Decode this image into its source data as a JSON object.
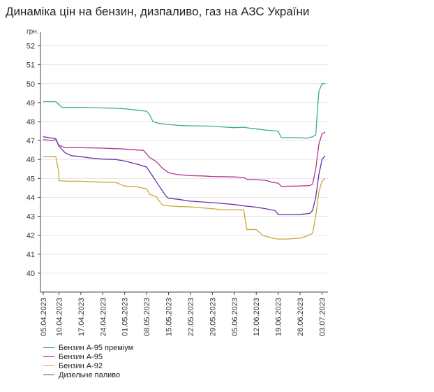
{
  "title": "Динаміка цін на бензин, дизпаливо, газ на АЗС України",
  "chart_data": {
    "type": "line",
    "title": "Динаміка цін на бензин, дизпаливо, газ на АЗС України",
    "ylabel": "грн.",
    "xlabel": "",
    "ylim": [
      39,
      52.5
    ],
    "y_ticks": [
      40,
      41,
      42,
      43,
      44,
      45,
      46,
      47,
      48,
      49,
      50,
      51,
      52
    ],
    "x_tick_labels": [
      "05.04.2023",
      "10.04.2023",
      "17.04.2023",
      "24.04.2023",
      "01.05.2023",
      "08.05.2023",
      "15.05.2023",
      "22.05.2023",
      "29.05.2023",
      "05.06.2023",
      "12.06.2023",
      "19.06.2023",
      "26.06.2023",
      "03.07.2023"
    ],
    "x_start": "05.04.2023",
    "x_end": "04.07.2023",
    "grid": "horizontal",
    "legend_position": "bottom-left",
    "series": [
      {
        "name": "Бензин А-95 преміум",
        "color": "#3aa99a",
        "points": [
          [
            "05.04.2023",
            49.05
          ],
          [
            "09.04.2023",
            49.05
          ],
          [
            "10.04.2023",
            48.9
          ],
          [
            "11.04.2023",
            48.75
          ],
          [
            "17.04.2023",
            48.75
          ],
          [
            "24.04.2023",
            48.72
          ],
          [
            "28.04.2023",
            48.7
          ],
          [
            "01.05.2023",
            48.68
          ],
          [
            "05.05.2023",
            48.6
          ],
          [
            "08.05.2023",
            48.55
          ],
          [
            "09.05.2023",
            48.35
          ],
          [
            "10.05.2023",
            48.0
          ],
          [
            "12.05.2023",
            47.9
          ],
          [
            "15.05.2023",
            47.85
          ],
          [
            "18.05.2023",
            47.8
          ],
          [
            "22.05.2023",
            47.78
          ],
          [
            "29.05.2023",
            47.76
          ],
          [
            "01.06.2023",
            47.72
          ],
          [
            "05.06.2023",
            47.68
          ],
          [
            "08.06.2023",
            47.7
          ],
          [
            "10.06.2023",
            47.65
          ],
          [
            "12.06.2023",
            47.62
          ],
          [
            "15.06.2023",
            47.55
          ],
          [
            "19.06.2023",
            47.5
          ],
          [
            "20.06.2023",
            47.15
          ],
          [
            "26.06.2023",
            47.15
          ],
          [
            "28.06.2023",
            47.12
          ],
          [
            "30.06.2023",
            47.2
          ],
          [
            "01.07.2023",
            47.3
          ],
          [
            "02.07.2023",
            49.6
          ],
          [
            "03.07.2023",
            50.0
          ],
          [
            "04.07.2023",
            50.0
          ]
        ]
      },
      {
        "name": "Бензин А-95",
        "color": "#b0368f",
        "points": [
          [
            "05.04.2023",
            47.05
          ],
          [
            "08.04.2023",
            47.0
          ],
          [
            "09.04.2023",
            47.05
          ],
          [
            "10.04.2023",
            46.75
          ],
          [
            "12.04.2023",
            46.62
          ],
          [
            "17.04.2023",
            46.62
          ],
          [
            "24.04.2023",
            46.6
          ],
          [
            "01.05.2023",
            46.55
          ],
          [
            "05.05.2023",
            46.5
          ],
          [
            "07.05.2023",
            46.48
          ],
          [
            "09.05.2023",
            46.1
          ],
          [
            "11.05.2023",
            45.9
          ],
          [
            "13.05.2023",
            45.55
          ],
          [
            "15.05.2023",
            45.3
          ],
          [
            "18.05.2023",
            45.2
          ],
          [
            "22.05.2023",
            45.15
          ],
          [
            "26.05.2023",
            45.13
          ],
          [
            "29.05.2023",
            45.1
          ],
          [
            "05.06.2023",
            45.08
          ],
          [
            "08.06.2023",
            45.05
          ],
          [
            "09.06.2023",
            44.95
          ],
          [
            "12.06.2023",
            44.93
          ],
          [
            "15.06.2023",
            44.9
          ],
          [
            "17.06.2023",
            44.8
          ],
          [
            "19.06.2023",
            44.75
          ],
          [
            "20.06.2023",
            44.58
          ],
          [
            "26.06.2023",
            44.6
          ],
          [
            "29.06.2023",
            44.62
          ],
          [
            "30.06.2023",
            44.7
          ],
          [
            "01.07.2023",
            45.5
          ],
          [
            "02.07.2023",
            46.8
          ],
          [
            "03.07.2023",
            47.35
          ],
          [
            "04.07.2023",
            47.45
          ]
        ]
      },
      {
        "name": "Бензин А-92",
        "color": "#c8a73a",
        "points": [
          [
            "05.04.2023",
            46.15
          ],
          [
            "09.04.2023",
            46.15
          ],
          [
            "10.04.2023",
            45.3
          ],
          [
            "10.04.2023",
            44.88
          ],
          [
            "13.04.2023",
            44.85
          ],
          [
            "17.04.2023",
            44.85
          ],
          [
            "21.04.2023",
            44.82
          ],
          [
            "24.04.2023",
            44.8
          ],
          [
            "28.04.2023",
            44.8
          ],
          [
            "01.05.2023",
            44.6
          ],
          [
            "05.05.2023",
            44.55
          ],
          [
            "08.05.2023",
            44.45
          ],
          [
            "09.05.2023",
            44.15
          ],
          [
            "11.05.2023",
            44.05
          ],
          [
            "13.05.2023",
            43.6
          ],
          [
            "15.05.2023",
            43.55
          ],
          [
            "18.05.2023",
            43.52
          ],
          [
            "22.05.2023",
            43.5
          ],
          [
            "29.05.2023",
            43.4
          ],
          [
            "01.06.2023",
            43.35
          ],
          [
            "05.06.2023",
            43.35
          ],
          [
            "08.06.2023",
            43.33
          ],
          [
            "09.06.2023",
            42.3
          ],
          [
            "12.06.2023",
            42.3
          ],
          [
            "14.06.2023",
            42.0
          ],
          [
            "17.06.2023",
            41.85
          ],
          [
            "19.06.2023",
            41.8
          ],
          [
            "22.06.2023",
            41.8
          ],
          [
            "26.06.2023",
            41.85
          ],
          [
            "28.06.2023",
            41.95
          ],
          [
            "30.06.2023",
            42.1
          ],
          [
            "01.07.2023",
            43.0
          ],
          [
            "02.07.2023",
            44.3
          ],
          [
            "03.07.2023",
            44.85
          ],
          [
            "04.07.2023",
            45.0
          ]
        ]
      },
      {
        "name": "Дизельне паливо",
        "color": "#6a2ca8",
        "points": [
          [
            "05.04.2023",
            47.2
          ],
          [
            "08.04.2023",
            47.12
          ],
          [
            "09.04.2023",
            47.1
          ],
          [
            "10.04.2023",
            46.7
          ],
          [
            "12.04.2023",
            46.35
          ],
          [
            "14.04.2023",
            46.2
          ],
          [
            "17.04.2023",
            46.15
          ],
          [
            "20.04.2023",
            46.08
          ],
          [
            "24.04.2023",
            46.02
          ],
          [
            "28.04.2023",
            46.0
          ],
          [
            "01.05.2023",
            45.92
          ],
          [
            "05.05.2023",
            45.75
          ],
          [
            "08.05.2023",
            45.6
          ],
          [
            "10.05.2023",
            45.1
          ],
          [
            "12.05.2023",
            44.6
          ],
          [
            "14.05.2023",
            44.1
          ],
          [
            "15.05.2023",
            43.95
          ],
          [
            "18.05.2023",
            43.9
          ],
          [
            "22.05.2023",
            43.8
          ],
          [
            "29.05.2023",
            43.72
          ],
          [
            "01.06.2023",
            43.68
          ],
          [
            "05.06.2023",
            43.62
          ],
          [
            "08.06.2023",
            43.55
          ],
          [
            "12.06.2023",
            43.48
          ],
          [
            "15.06.2023",
            43.4
          ],
          [
            "18.06.2023",
            43.3
          ],
          [
            "19.06.2023",
            43.1
          ],
          [
            "22.06.2023",
            43.08
          ],
          [
            "26.06.2023",
            43.1
          ],
          [
            "29.06.2023",
            43.15
          ],
          [
            "30.06.2023",
            43.3
          ],
          [
            "01.07.2023",
            44.0
          ],
          [
            "02.07.2023",
            45.2
          ],
          [
            "03.07.2023",
            46.0
          ],
          [
            "04.07.2023",
            46.2
          ]
        ]
      }
    ]
  }
}
